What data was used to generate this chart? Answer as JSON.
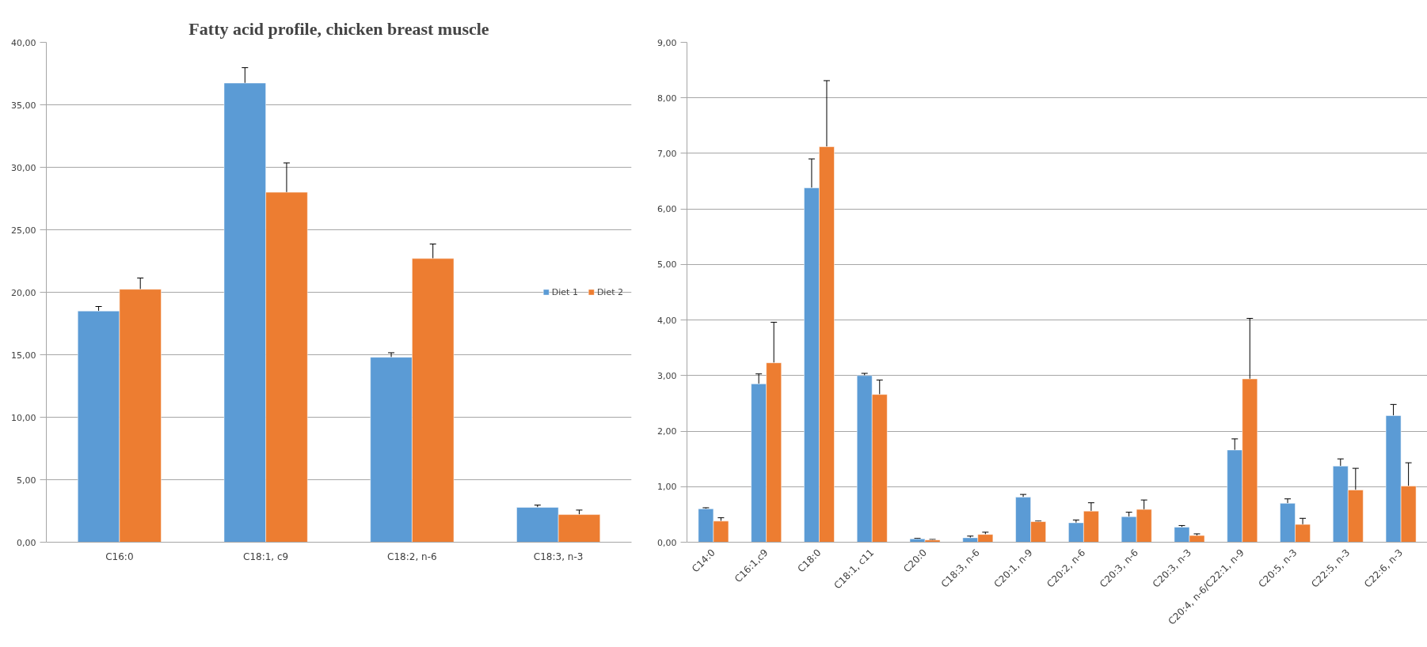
{
  "chart_data": [
    {
      "type": "bar",
      "title": "Fatty acid profile, chicken breast muscle",
      "categories": [
        "C16:0",
        "C18:1, c9",
        "C18:2, n-6",
        "C18:3, n-3"
      ],
      "series": [
        {
          "name": "Diet 1",
          "color": "#5b9bd5",
          "values": [
            18.5,
            36.74,
            14.8,
            2.79
          ],
          "errors": [
            [
              18.5,
              18.86
            ],
            [
              36.74,
              37.97
            ],
            [
              14.8,
              15.16
            ],
            [
              2.79,
              2.97
            ]
          ]
        },
        {
          "name": "Diet 2",
          "color": "#ed7d31",
          "values": [
            20.24,
            28.0,
            22.7,
            2.21
          ],
          "errors": [
            [
              20.24,
              21.14
            ],
            [
              28.0,
              30.35
            ],
            [
              22.7,
              23.86
            ],
            [
              2.21,
              2.57
            ]
          ]
        }
      ],
      "ylim": [
        0,
        40
      ],
      "yticks": [
        {
          "value": 0,
          "label": "0,00"
        },
        {
          "value": 5,
          "label": "5,00"
        },
        {
          "value": 10,
          "label": "10,00"
        },
        {
          "value": 15,
          "label": "15,00"
        },
        {
          "value": 20,
          "label": "20,00"
        },
        {
          "value": 25,
          "label": "25,00"
        },
        {
          "value": 30,
          "label": "30,00"
        },
        {
          "value": 35,
          "label": "35,00"
        },
        {
          "value": 40,
          "label": "40,00"
        }
      ],
      "grid": "y",
      "legend": "right"
    },
    {
      "type": "bar",
      "categories": [
        "C14:0",
        "C16:1,c9",
        "C18:0",
        "C18:1, c11",
        "C20:0",
        "C18:3, n-6",
        "C20:1, n-9",
        "C20:2, n-6",
        "C20:3, n-6",
        "C20:3, n-3",
        "C20:4, n-6/C22:1, n-9",
        "C20:5, n-3",
        "C22:5, n-3",
        "C22:6, n-3"
      ],
      "series": [
        {
          "color": "#5b9bd5",
          "values": [
            0.6,
            2.85,
            6.38,
            3.0,
            0.06,
            0.08,
            0.81,
            0.35,
            0.46,
            0.27,
            1.66,
            0.7,
            1.37,
            2.28
          ],
          "errors": [
            [
              0.6,
              0.62
            ],
            [
              2.85,
              3.03
            ],
            [
              6.38,
              6.9
            ],
            [
              3.0,
              3.04
            ],
            [
              0.06,
              0.07
            ],
            [
              0.08,
              0.11
            ],
            [
              0.81,
              0.86
            ],
            [
              0.35,
              0.4
            ],
            [
              0.46,
              0.54
            ],
            [
              0.27,
              0.3
            ],
            [
              1.66,
              1.86
            ],
            [
              0.7,
              0.78
            ],
            [
              1.37,
              1.5
            ],
            [
              2.28,
              2.48
            ]
          ]
        },
        {
          "color": "#ed7d31",
          "values": [
            0.38,
            3.23,
            7.12,
            2.66,
            0.04,
            0.14,
            0.37,
            0.56,
            0.59,
            0.12,
            2.94,
            0.32,
            0.94,
            1.01
          ],
          "errors": [
            [
              0.38,
              0.44
            ],
            [
              3.23,
              3.96
            ],
            [
              7.12,
              8.31
            ],
            [
              2.66,
              2.92
            ],
            [
              0.04,
              0.05
            ],
            [
              0.14,
              0.18
            ],
            [
              0.37,
              0.38
            ],
            [
              0.56,
              0.71
            ],
            [
              0.59,
              0.76
            ],
            [
              0.12,
              0.15
            ],
            [
              2.94,
              4.03
            ],
            [
              0.32,
              0.43
            ],
            [
              0.94,
              1.33
            ],
            [
              1.01,
              1.43
            ]
          ]
        }
      ],
      "ylim": [
        0,
        9
      ],
      "yticks": [
        {
          "value": 0,
          "label": "0,00"
        },
        {
          "value": 1,
          "label": "1,00"
        },
        {
          "value": 2,
          "label": "2,00"
        },
        {
          "value": 3,
          "label": "3,00"
        },
        {
          "value": 4,
          "label": "4,00"
        },
        {
          "value": 5,
          "label": "5,00"
        },
        {
          "value": 6,
          "label": "6,00"
        },
        {
          "value": 7,
          "label": "7,00"
        },
        {
          "value": 8,
          "label": "8,00"
        },
        {
          "value": 9,
          "label": "9,00"
        }
      ],
      "grid": "y"
    }
  ]
}
